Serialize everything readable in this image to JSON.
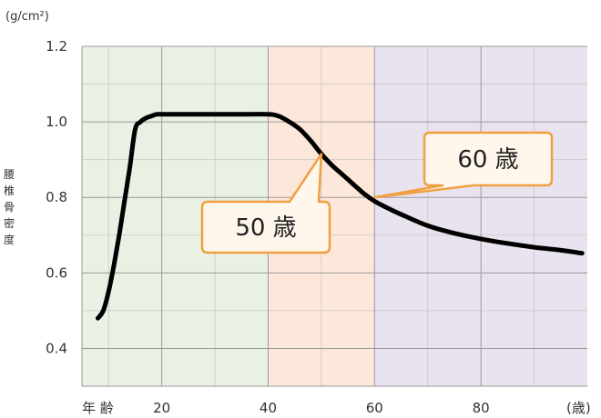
{
  "chart_data": {
    "type": "line",
    "y_unit_label": "(g/cm²)",
    "ylabel": "腰椎骨密度",
    "xlabel": "年 齢",
    "x_unit_label": "(歳)",
    "xlim": [
      5,
      100
    ],
    "ylim": [
      0.3,
      1.2
    ],
    "x_ticks": [
      20,
      40,
      60,
      80
    ],
    "x_tick_labels": [
      "20",
      "40",
      "60",
      "80"
    ],
    "y_ticks": [
      0.4,
      0.6,
      0.8,
      1.0,
      1.2
    ],
    "y_tick_labels": [
      "0.4",
      "0.6",
      "0.8",
      "1.0",
      "1.2"
    ],
    "x_minor_ticks": [
      10,
      30,
      50,
      70,
      90
    ],
    "y_minor_ticks": [
      0.3,
      0.5,
      0.7,
      0.9,
      1.1
    ],
    "grid": true,
    "bands": [
      {
        "x_range": [
          5,
          40
        ],
        "color": "#e9f1e4"
      },
      {
        "x_range": [
          40,
          60
        ],
        "color": "#fde7da"
      },
      {
        "x_range": [
          60,
          100
        ],
        "color": "#e9e2ef"
      }
    ],
    "series": [
      {
        "color": "#000000",
        "x": [
          8,
          9,
          10,
          11,
          12,
          13,
          14,
          15,
          16,
          17,
          18,
          19,
          20,
          25,
          30,
          35,
          40,
          42,
          44,
          46,
          48,
          50,
          52,
          54,
          56,
          58,
          60,
          62,
          65,
          70,
          75,
          80,
          85,
          90,
          95,
          99
        ],
        "y": [
          0.48,
          0.5,
          0.55,
          0.62,
          0.7,
          0.79,
          0.88,
          0.98,
          1.0,
          1.01,
          1.015,
          1.02,
          1.02,
          1.02,
          1.02,
          1.02,
          1.02,
          1.015,
          1.0,
          0.98,
          0.95,
          0.915,
          0.885,
          0.86,
          0.835,
          0.81,
          0.79,
          0.775,
          0.755,
          0.725,
          0.705,
          0.69,
          0.678,
          0.668,
          0.66,
          0.652
        ]
      }
    ],
    "annotations": [
      {
        "text": "50 歳",
        "point_x": 50,
        "point_y": 0.915
      },
      {
        "text": "60 歳",
        "point_x": 60,
        "point_y": 0.8
      }
    ],
    "callout_style": {
      "fill": "#fff6ec",
      "stroke": "#f0a040"
    }
  }
}
